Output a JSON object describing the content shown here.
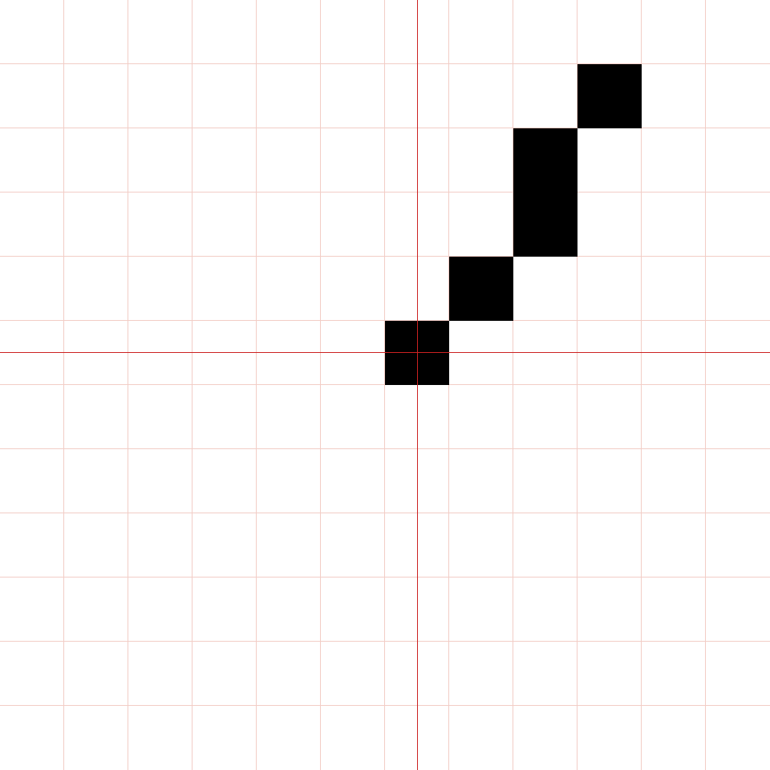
{
  "grid": {
    "columns": 12,
    "rows": 12,
    "line_color": "#f2cdc6",
    "axis_color": "#cc2222",
    "background_color": "#ffffff"
  },
  "axes": {
    "origin_column": 6,
    "origin_row": 5
  },
  "pixels": {
    "fill_color": "#000000",
    "cells": [
      {
        "col": 9,
        "row": 1
      },
      {
        "col": 8,
        "row": 2
      },
      {
        "col": 8,
        "row": 3
      },
      {
        "col": 7,
        "row": 4
      },
      {
        "col": 6,
        "row": 5
      }
    ]
  }
}
